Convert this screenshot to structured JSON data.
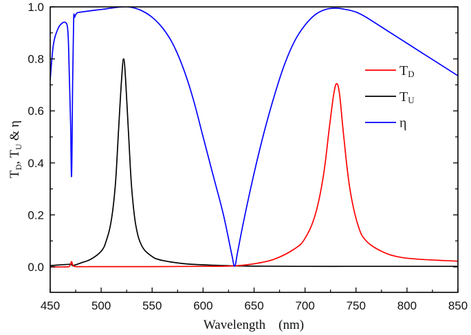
{
  "chart_data": {
    "type": "line",
    "title": "",
    "xlabel": "Wavelength    (nm)",
    "ylabel": "T_D, T_U & η",
    "xlim": [
      450,
      850
    ],
    "ylim": [
      -0.1,
      1.0
    ],
    "xticks": [
      450,
      500,
      550,
      600,
      650,
      700,
      750,
      800,
      850
    ],
    "yticks": [
      0.0,
      0.2,
      0.4,
      0.6,
      0.8,
      1.0
    ],
    "xtick_labels": [
      "450",
      "500",
      "550",
      "600",
      "650",
      "700",
      "750",
      "800",
      "850"
    ],
    "ytick_labels": [
      "0.0",
      "0.2",
      "0.4",
      "0.6",
      "0.8",
      "1.0"
    ],
    "grid": false,
    "legend_position": "upper-right-inside",
    "series": [
      {
        "name": "T_D",
        "label_main": "T",
        "label_sub": "D",
        "color": "#ff0000",
        "x": [
          450,
          465,
          469,
          471,
          473,
          480,
          500,
          550,
          600,
          630,
          650,
          670,
          690,
          700,
          710,
          718,
          724,
          728,
          731,
          734,
          738,
          744,
          752,
          760,
          775,
          790,
          810,
          850
        ],
        "y": [
          0.0,
          0.0,
          0.003,
          0.02,
          0.003,
          0.001,
          0.001,
          0.001,
          0.002,
          0.004,
          0.012,
          0.03,
          0.07,
          0.11,
          0.2,
          0.35,
          0.54,
          0.66,
          0.705,
          0.66,
          0.5,
          0.3,
          0.16,
          0.1,
          0.06,
          0.04,
          0.03,
          0.022
        ]
      },
      {
        "name": "T_U",
        "label_main": "T",
        "label_sub": "U",
        "color": "#000000",
        "x": [
          450,
          470,
          472,
          480,
          490,
          500,
          505,
          510,
          514,
          517,
          520,
          522,
          524,
          527,
          530,
          534,
          540,
          550,
          560,
          580,
          600,
          630,
          650,
          700,
          750,
          800,
          850
        ],
        "y": [
          0.005,
          0.01,
          0.005,
          0.015,
          0.03,
          0.06,
          0.1,
          0.18,
          0.32,
          0.52,
          0.72,
          0.8,
          0.72,
          0.5,
          0.3,
          0.16,
          0.08,
          0.04,
          0.025,
          0.013,
          0.008,
          0.004,
          0.003,
          0.002,
          0.002,
          0.002,
          0.002
        ]
      },
      {
        "name": "η",
        "label_main": "η",
        "label_sub": "",
        "color": "#0000ff",
        "x": [
          450,
          453,
          457,
          461,
          465,
          467,
          468,
          469,
          470,
          471,
          472,
          473,
          474,
          476,
          480,
          500,
          520,
          530,
          540,
          550,
          560,
          570,
          580,
          590,
          600,
          610,
          620,
          628,
          631,
          634,
          640,
          650,
          660,
          670,
          680,
          690,
          700,
          710,
          720,
          730,
          740,
          750,
          760,
          780,
          800,
          820,
          840,
          850
        ],
        "y": [
          0.72,
          0.85,
          0.91,
          0.935,
          0.94,
          0.92,
          0.85,
          0.7,
          0.55,
          0.35,
          0.7,
          0.95,
          0.96,
          0.975,
          0.98,
          0.99,
          1.0,
          0.998,
          0.985,
          0.96,
          0.92,
          0.86,
          0.77,
          0.65,
          0.5,
          0.35,
          0.2,
          0.05,
          0.003,
          0.06,
          0.18,
          0.36,
          0.52,
          0.66,
          0.78,
          0.87,
          0.93,
          0.97,
          0.99,
          0.995,
          0.99,
          0.98,
          0.96,
          0.91,
          0.86,
          0.81,
          0.76,
          0.735
        ]
      }
    ]
  }
}
